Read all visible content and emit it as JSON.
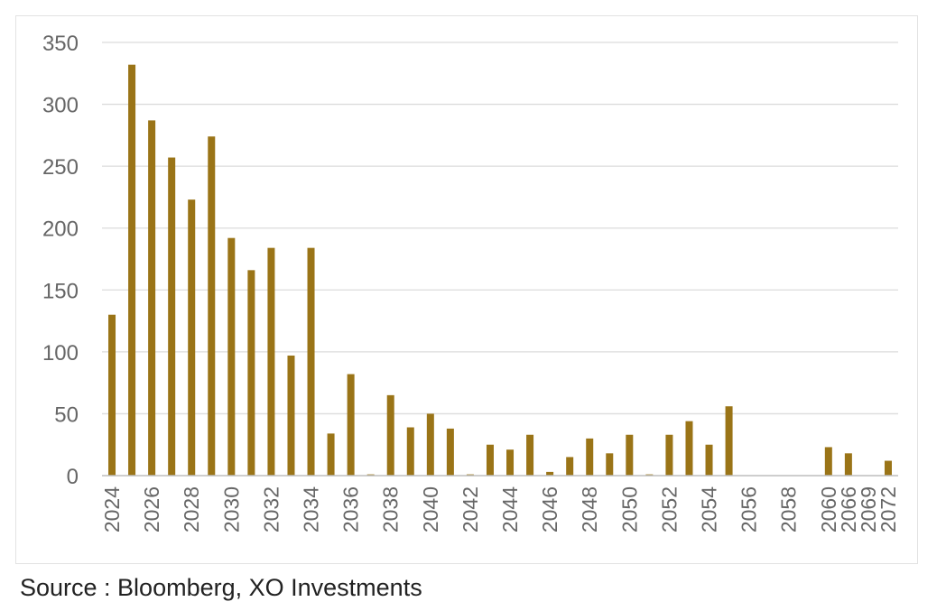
{
  "source": "Source : Bloomberg, XO Investments",
  "chart_data": {
    "type": "bar",
    "categories": [
      "2024",
      "2025",
      "2026",
      "2027",
      "2028",
      "2029",
      "2030",
      "2031",
      "2032",
      "2033",
      "2034",
      "2035",
      "2036",
      "2037",
      "2038",
      "2039",
      "2040",
      "2041",
      "2042",
      "2043",
      "2044",
      "2045",
      "2046",
      "2047",
      "2048",
      "2049",
      "2050",
      "2051",
      "2052",
      "2053",
      "2054",
      "2055",
      "2056",
      "2057",
      "2058",
      "2059",
      "2060",
      "2066",
      "2069",
      "2072"
    ],
    "tick_labels": [
      "2024",
      "2026",
      "2028",
      "2030",
      "2032",
      "2034",
      "2036",
      "2038",
      "2040",
      "2042",
      "2044",
      "2046",
      "2048",
      "2050",
      "2052",
      "2054",
      "2056",
      "2058",
      "2060",
      "2066",
      "2069",
      "2072"
    ],
    "values": [
      130,
      332,
      287,
      257,
      223,
      274,
      192,
      166,
      184,
      97,
      184,
      34,
      82,
      1,
      65,
      39,
      50,
      38,
      1,
      25,
      21,
      33,
      3,
      15,
      30,
      18,
      33,
      1,
      33,
      44,
      25,
      56,
      0,
      0,
      0,
      0,
      23,
      18,
      0,
      12
    ],
    "title": "",
    "xlabel": "",
    "ylabel": "",
    "ylim": [
      0,
      350
    ],
    "yticks": [
      0,
      50,
      100,
      150,
      200,
      250,
      300,
      350
    ],
    "grid": true,
    "legend": "none",
    "colors": {
      "bar": "#9a7417",
      "grid": "#dcdcdc",
      "axis": "#bdbdbd",
      "tick_text": "#666666"
    }
  }
}
